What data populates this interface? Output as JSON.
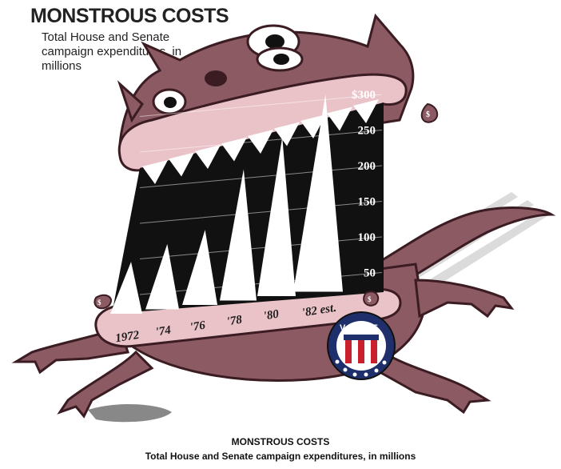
{
  "title": "MONSTROUS COSTS",
  "subtitle": "Total House and Senate campaign expenditures, in millions",
  "caption": {
    "title": "MONSTROUS COSTS",
    "subtitle": "Total House and Senate campaign expenditures, in millions"
  },
  "badge": {
    "text": "VOTE"
  },
  "colors": {
    "monster": "#8c5a62",
    "monster_dark": "#3a1c22",
    "lips": "#e9c3c8",
    "mouth": "#111111",
    "teeth": "#ffffff",
    "badge_blue": "#1f2f6b",
    "badge_red": "#c8202c"
  },
  "chart_data": {
    "type": "bar",
    "style": "pictorial teeth inside monster mouth",
    "title": "MONSTROUS COSTS",
    "subtitle": "Total House and Senate campaign expenditures, in millions",
    "categories": [
      "1972",
      "'74",
      "'76",
      "'78",
      "'80",
      "'82 est."
    ],
    "values": [
      65,
      90,
      110,
      195,
      240,
      300
    ],
    "y_ticks": [
      "$300",
      "250",
      "200",
      "150",
      "100",
      "50"
    ],
    "y_tick_values": [
      300,
      250,
      200,
      150,
      100,
      50
    ],
    "ylim": [
      0,
      300
    ],
    "grid": true,
    "legend": "none"
  }
}
